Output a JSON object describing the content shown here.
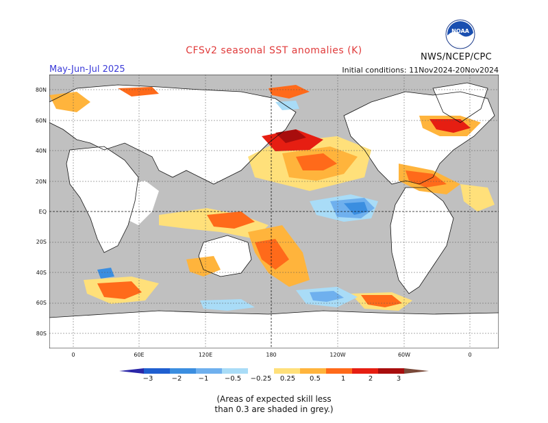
{
  "header": {
    "title": "CFSv2 seasonal SST anomalies (K)",
    "season": "May-Jun-Jul 2025",
    "initial_conditions": "Initial conditions: 11Nov2024-20Nov2024",
    "organization": "NWS/NCEP/CPC",
    "logo_text": "NOAA"
  },
  "map": {
    "lat_labels": [
      "80N",
      "60N",
      "40N",
      "20N",
      "EQ",
      "20S",
      "40S",
      "60S",
      "80S"
    ],
    "lon_labels": [
      "0",
      "60E",
      "120E",
      "180",
      "120W",
      "60W",
      "0"
    ],
    "land_color": "#ffffff",
    "low_skill_color": "#c0c0c0",
    "icons": [
      "noaa-logo-icon"
    ]
  },
  "colorbar": {
    "labels": [
      "−3",
      "−2",
      "−1",
      "−0.5",
      "−0.25",
      "0.25",
      "0.5",
      "1",
      "2",
      "3"
    ],
    "colors": [
      "#2b27a8",
      "#1f5fd0",
      "#3b8ee0",
      "#6fb0ee",
      "#a9dcf7",
      "#ffffff",
      "#ffe07a",
      "#ffb43c",
      "#ff6a1a",
      "#e61e12",
      "#a80d0d",
      "#7a4a3a"
    ]
  },
  "footnote": {
    "line1": "(Areas of expected skill less",
    "line2": "than 0.3 are shaded in grey.)"
  }
}
